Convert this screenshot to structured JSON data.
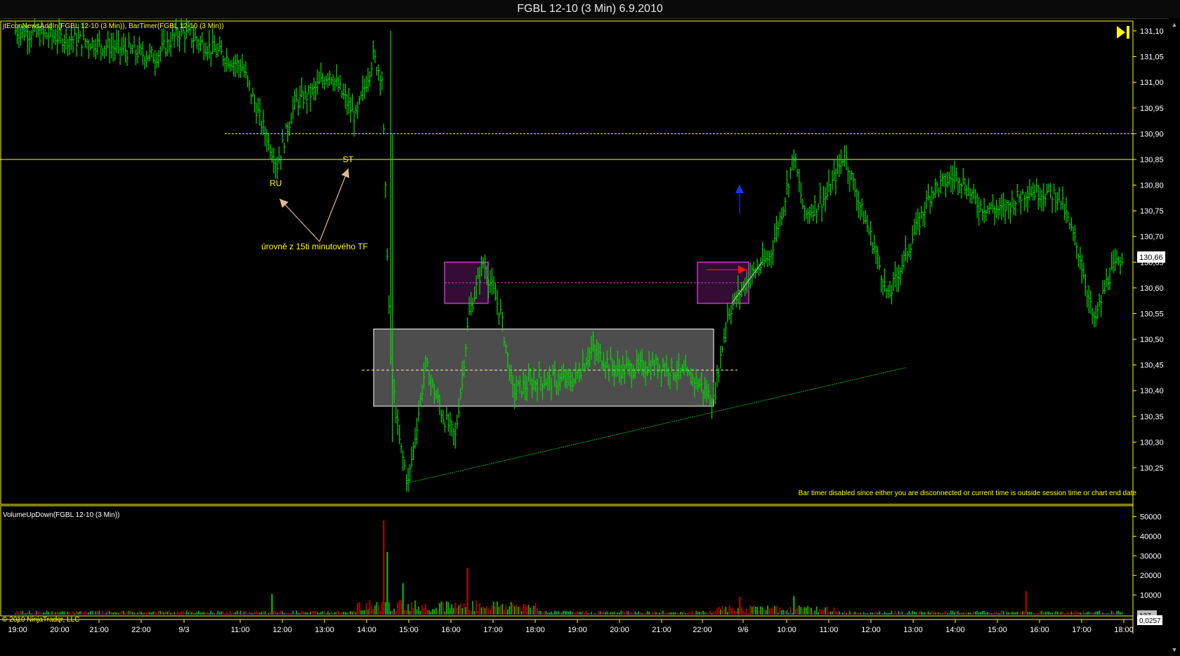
{
  "window": {
    "title": "FGBL 12-10 (3 Min)  6.9.2010"
  },
  "indicators_label": "jtEconNewsAddIn(FGBL 12-10 (3 Min)), BarTimer(FGBL 12-10 (3 Min))",
  "volume_label": "VolumeUpDown(FGBL 12-10 (3 Min))",
  "bar_timer_message": "Bar timer disabled since either you are disconnected or current time is outside session time or chart end date",
  "copyright": "© 2010 NinjaTrader, LLC",
  "annotations": {
    "ru": "RU",
    "st": "ST",
    "levels_note": "úrovně z 15ti minutového TF"
  },
  "price_badge": "130,66",
  "volume_badge": "137",
  "third_badge": "0,0257",
  "colors": {
    "background": "#000000",
    "bar": "#00dd00",
    "axis": "#ffff00",
    "grid_line": "#ffff00",
    "volume_up": "#00cc00",
    "volume_down": "#cc0000",
    "box_gray": "#8c8c8c",
    "box_magenta": "#cc33cc",
    "arrow_blue": "#1133ff",
    "arrow_red": "#ff1111",
    "trendline": "#00aa33",
    "arrow_tan": "#e0b890"
  },
  "icons": {
    "play": "play-pause-icon",
    "scroll": "scrollbar"
  },
  "chart_data": [
    {
      "type": "bar",
      "title": "FGBL 12-10 (3 Min)  6.9.2010",
      "ylim": [
        130.2,
        131.15
      ],
      "y_ticks": [
        "131,10",
        "131,05",
        "131,00",
        "130,95",
        "130,90",
        "130,85",
        "130,80",
        "130,75",
        "130,70",
        "130,65",
        "130,60",
        "130,55",
        "130,50",
        "130,45",
        "130,40",
        "130,35",
        "130,30",
        "130,25"
      ],
      "x_ticks": [
        "19:00",
        "20:00",
        "21:00",
        "22:00",
        "9/3",
        "11:00",
        "12:00",
        "13:00",
        "14:00",
        "15:00",
        "16:00",
        "17:00",
        "18:00",
        "19:00",
        "20:00",
        "21:00",
        "22:00",
        "9/6",
        "10:00",
        "11:00",
        "12:00",
        "13:00",
        "14:00",
        "15:00",
        "16:00",
        "17:00",
        "18:00"
      ],
      "anchors": [
        {
          "t": 0,
          "p": 131.1
        },
        {
          "t": 40,
          "p": 131.08
        },
        {
          "t": 80,
          "p": 131.05
        },
        {
          "t": 95,
          "p": 131.1
        },
        {
          "t": 115,
          "p": 131.06
        },
        {
          "t": 130,
          "p": 131.03
        },
        {
          "t": 140,
          "p": 130.93
        },
        {
          "t": 150,
          "p": 130.84
        },
        {
          "t": 160,
          "p": 130.96
        },
        {
          "t": 170,
          "p": 130.98
        },
        {
          "t": 180,
          "p": 131.02
        },
        {
          "t": 195,
          "p": 130.93
        },
        {
          "t": 205,
          "p": 131.05
        },
        {
          "t": 210,
          "p": 131.01
        },
        {
          "t": 215,
          "p": 130.45
        },
        {
          "t": 220,
          "p": 130.3
        },
        {
          "t": 225,
          "p": 130.22
        },
        {
          "t": 235,
          "p": 130.45
        },
        {
          "t": 245,
          "p": 130.35
        },
        {
          "t": 252,
          "p": 130.31
        },
        {
          "t": 260,
          "p": 130.55
        },
        {
          "t": 268,
          "p": 130.65
        },
        {
          "t": 278,
          "p": 130.55
        },
        {
          "t": 285,
          "p": 130.4
        },
        {
          "t": 300,
          "p": 130.42
        },
        {
          "t": 320,
          "p": 130.42
        },
        {
          "t": 330,
          "p": 130.48
        },
        {
          "t": 345,
          "p": 130.44
        },
        {
          "t": 370,
          "p": 130.45
        },
        {
          "t": 390,
          "p": 130.42
        },
        {
          "t": 400,
          "p": 130.38
        },
        {
          "t": 408,
          "p": 130.55
        },
        {
          "t": 420,
          "p": 130.62
        },
        {
          "t": 432,
          "p": 130.66
        },
        {
          "t": 440,
          "p": 130.76
        },
        {
          "t": 446,
          "p": 130.86
        },
        {
          "t": 452,
          "p": 130.74
        },
        {
          "t": 465,
          "p": 130.78
        },
        {
          "t": 475,
          "p": 130.86
        },
        {
          "t": 482,
          "p": 130.78
        },
        {
          "t": 492,
          "p": 130.68
        },
        {
          "t": 500,
          "p": 130.58
        },
        {
          "t": 512,
          "p": 130.68
        },
        {
          "t": 525,
          "p": 130.79
        },
        {
          "t": 540,
          "p": 130.82
        },
        {
          "t": 552,
          "p": 130.76
        },
        {
          "t": 565,
          "p": 130.75
        },
        {
          "t": 580,
          "p": 130.79
        },
        {
          "t": 598,
          "p": 130.78
        },
        {
          "t": 610,
          "p": 130.66
        },
        {
          "t": 618,
          "p": 130.53
        },
        {
          "t": 626,
          "p": 130.62
        },
        {
          "t": 634,
          "p": 130.66
        }
      ],
      "volume": {
        "ylim": [
          0,
          55000
        ],
        "y_ticks": [
          "50000",
          "40000",
          "30000",
          "20000",
          "10000"
        ],
        "spikes": [
          {
            "t": 211,
            "v": 48000
          },
          {
            "t": 213,
            "v": 32000
          },
          {
            "t": 259,
            "v": 24000
          },
          {
            "t": 222,
            "v": 16000
          },
          {
            "t": 579,
            "v": 12000
          },
          {
            "t": 147,
            "v": 10500
          },
          {
            "t": 415,
            "v": 9000
          },
          {
            "t": 446,
            "v": 9500
          }
        ]
      }
    }
  ]
}
